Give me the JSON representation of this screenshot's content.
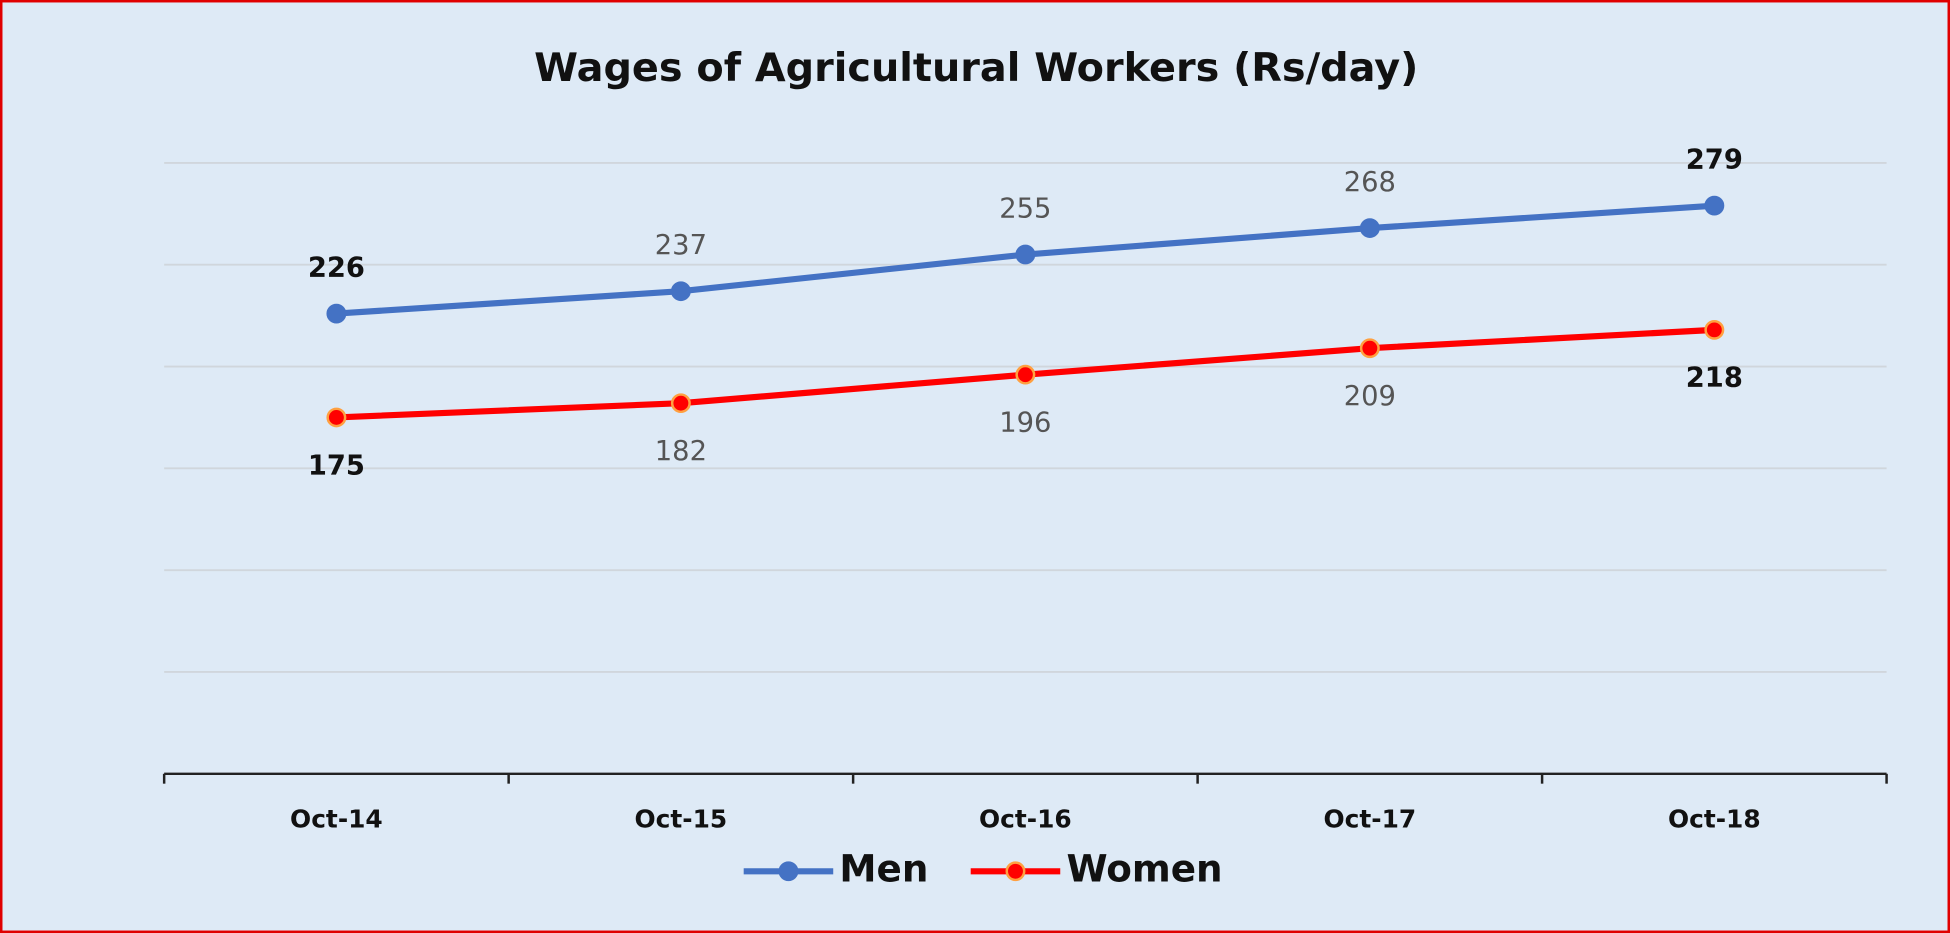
{
  "chart_data": {
    "type": "line",
    "title": "Wages of Agricultural Workers (Rs/day)",
    "categories": [
      "Oct-14",
      "Oct-15",
      "Oct-16",
      "Oct-17",
      "Oct-18"
    ],
    "series": [
      {
        "name": "Men",
        "color": "#4472c4",
        "values": [
          226,
          237,
          255,
          268,
          279
        ]
      },
      {
        "name": "Women",
        "color": "#ff0000",
        "values": [
          175,
          182,
          196,
          209,
          218
        ]
      }
    ],
    "ylim": [
      0,
      300
    ],
    "yticks": [
      0,
      50,
      100,
      150,
      200,
      250,
      300
    ],
    "show_ytick_labels": false,
    "grid": true,
    "legend": "bottom"
  }
}
